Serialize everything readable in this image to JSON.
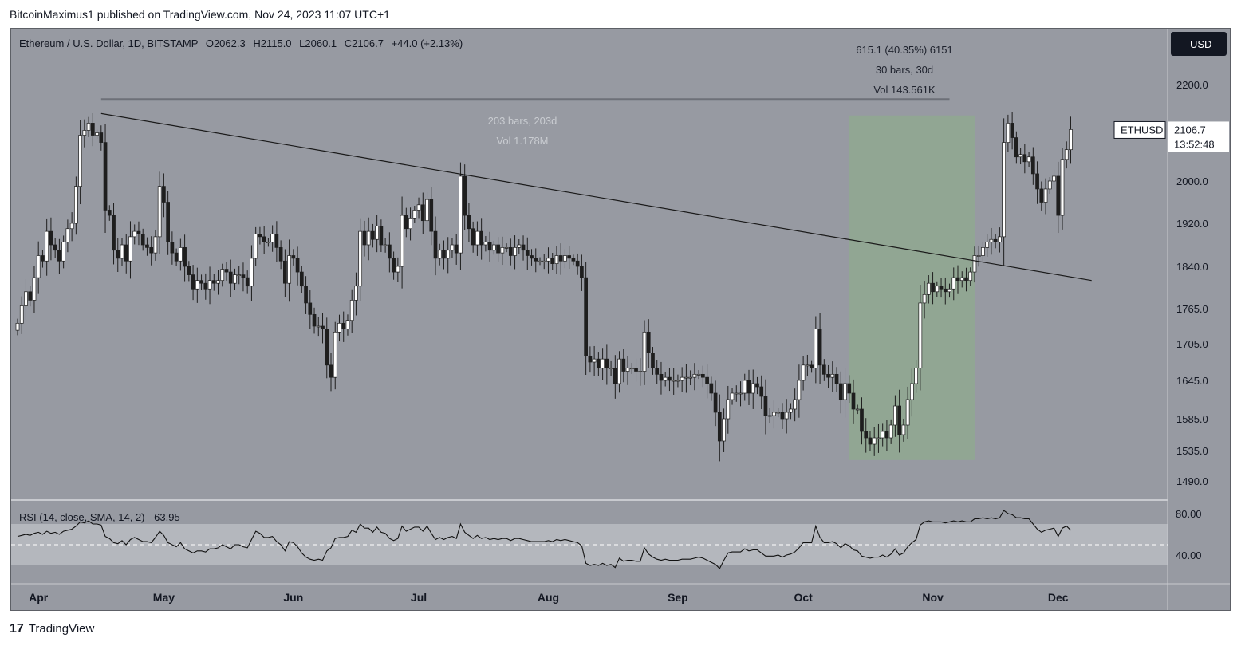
{
  "header": {
    "publisher": "BitcoinMaximus1 published on TradingView.com, Nov 24, 2023 11:07 UTC+1"
  },
  "legend": {
    "symbol": "Ethereum / U.S. Dollar, 1D, BITSTAMP",
    "open_label": "O",
    "open": "2062.3",
    "high_label": "H",
    "high": "2115.0",
    "low_label": "L",
    "low": "2060.1",
    "close_label": "C",
    "close": "2106.7",
    "change": "+44.0 (+2.13%)"
  },
  "currency_button": "USD",
  "price_tag": {
    "symbol": "ETHUSD",
    "price": "2106.7",
    "countdown": "13:52:48"
  },
  "measure_long": {
    "bars": "203 bars, 203d",
    "vol": "Vol 1.178M"
  },
  "measure_range": {
    "change": "615.1 (40.35%) 6151",
    "bars": "30 bars, 30d",
    "vol": "Vol 143.561K"
  },
  "rsi": {
    "label": "RSI (14, close, SMA, 14, 2)",
    "value": "63.95",
    "ticks": [
      "80.00",
      "40.00"
    ]
  },
  "footer": {
    "logo_mark": "17",
    "brand": "TradingView"
  },
  "colors": {
    "background": "#979aa2",
    "bull": "#ffffff",
    "bear": "#1e1e1e",
    "range_fill": "#8fa891",
    "trendline": "#1a1a1a"
  },
  "chart_data": {
    "type": "candlestick",
    "title": "Ethereum / U.S. Dollar, 1D, BITSTAMP",
    "y_ticks": [
      "2200.0",
      "2000.0",
      "1920.0",
      "1840.0",
      "1765.0",
      "1705.0",
      "1645.0",
      "1585.0",
      "1535.0",
      "1490.0"
    ],
    "x_ticks": [
      "Apr",
      "May",
      "Jun",
      "Jul",
      "Aug",
      "Sep",
      "Oct",
      "Nov",
      "Dec"
    ],
    "x_start": "2023-03-27",
    "closes": [
      1740,
      1770,
      1795,
      1780,
      1820,
      1860,
      1850,
      1905,
      1880,
      1870,
      1850,
      1885,
      1910,
      1920,
      1990,
      2095,
      2105,
      2120,
      2095,
      2100,
      2080,
      1945,
      1935,
      1870,
      1855,
      1880,
      1850,
      1895,
      1905,
      1900,
      1880,
      1875,
      1865,
      1895,
      1990,
      1960,
      1885,
      1865,
      1850,
      1875,
      1840,
      1825,
      1800,
      1815,
      1810,
      1800,
      1815,
      1810,
      1815,
      1835,
      1830,
      1810,
      1825,
      1825,
      1820,
      1805,
      1855,
      1900,
      1895,
      1885,
      1885,
      1900,
      1875,
      1850,
      1810,
      1860,
      1855,
      1830,
      1805,
      1775,
      1755,
      1735,
      1735,
      1730,
      1670,
      1650,
      1725,
      1740,
      1730,
      1745,
      1780,
      1805,
      1905,
      1880,
      1905,
      1890,
      1915,
      1880,
      1880,
      1855,
      1830,
      1840,
      1935,
      1910,
      1930,
      1945,
      1955,
      1925,
      1965,
      1905,
      1855,
      1870,
      1855,
      1870,
      1880,
      1865,
      2010,
      1935,
      1910,
      1880,
      1905,
      1880,
      1885,
      1870,
      1880,
      1865,
      1875,
      1875,
      1860,
      1875,
      1880,
      1870,
      1860,
      1855,
      1850,
      1850,
      1850,
      1855,
      1845,
      1860,
      1850,
      1860,
      1855,
      1850,
      1840,
      1820,
      1685,
      1675,
      1680,
      1665,
      1680,
      1665,
      1665,
      1640,
      1680,
      1660,
      1665,
      1665,
      1660,
      1660,
      1725,
      1690,
      1665,
      1655,
      1645,
      1650,
      1645,
      1645,
      1645,
      1650,
      1650,
      1650,
      1655,
      1655,
      1650,
      1640,
      1625,
      1595,
      1550,
      1585,
      1615,
      1625,
      1625,
      1625,
      1645,
      1625,
      1640,
      1635,
      1620,
      1590,
      1590,
      1595,
      1595,
      1585,
      1595,
      1600,
      1615,
      1645,
      1670,
      1670,
      1665,
      1730,
      1670,
      1655,
      1650,
      1655,
      1640,
      1615,
      1640,
      1625,
      1600,
      1600,
      1565,
      1555,
      1545,
      1555,
      1555,
      1565,
      1555,
      1575,
      1605,
      1560,
      1575,
      1615,
      1640,
      1665,
      1775,
      1790,
      1810,
      1795,
      1805,
      1800,
      1795,
      1800,
      1820,
      1815,
      1820,
      1815,
      1830,
      1860,
      1860,
      1875,
      1885,
      1890,
      1885,
      1895,
      2080,
      2120,
      2090,
      2050,
      2055,
      2040,
      2050,
      2015,
      1985,
      1960,
      1985,
      2000,
      2010,
      1935,
      2045,
      2065,
      2106.7
    ],
    "trendline": [
      {
        "date": "2023-04-16",
        "price": 2140
      },
      {
        "date": "2023-12-09",
        "price": 1815
      }
    ],
    "range_measure": {
      "from": "2023-10-12",
      "to": "2023-11-11",
      "low": 1521,
      "high": 2136,
      "change": 615.1,
      "pct": 40.35
    },
    "long_measure": {
      "from": "2023-04-16",
      "to": "2023-11-05",
      "price": 2169
    },
    "rsi": {
      "ylim": [
        25,
        90
      ],
      "upper_band": 70,
      "lower_band": 30,
      "mid": 50,
      "values": [
        58,
        59,
        60,
        59,
        61,
        62,
        60,
        63,
        61,
        62,
        60,
        63,
        64,
        65,
        68,
        72,
        71,
        73,
        70,
        70,
        69,
        58,
        56,
        52,
        51,
        54,
        50,
        55,
        57,
        55,
        53,
        53,
        52,
        57,
        63,
        59,
        52,
        50,
        48,
        52,
        46,
        44,
        42,
        44,
        44,
        43,
        46,
        46,
        47,
        50,
        48,
        46,
        50,
        50,
        48,
        47,
        55,
        63,
        61,
        57,
        57,
        58,
        53,
        50,
        44,
        53,
        52,
        48,
        42,
        38,
        36,
        35,
        36,
        35,
        44,
        47,
        56,
        57,
        57,
        58,
        64,
        62,
        70,
        66,
        66,
        62,
        67,
        62,
        61,
        56,
        54,
        56,
        68,
        63,
        65,
        67,
        67,
        63,
        68,
        61,
        55,
        57,
        55,
        57,
        58,
        56,
        70,
        62,
        59,
        56,
        59,
        56,
        57,
        55,
        56,
        55,
        56,
        56,
        54,
        56,
        56,
        55,
        54,
        53,
        53,
        53,
        53,
        54,
        53,
        55,
        54,
        55,
        54,
        53,
        52,
        49,
        32,
        30,
        31,
        30,
        32,
        30,
        31,
        28,
        37,
        34,
        35,
        35,
        34,
        34,
        47,
        41,
        38,
        36,
        35,
        36,
        35,
        35,
        35,
        36,
        36,
        36,
        37,
        38,
        37,
        35,
        33,
        31,
        27,
        35,
        42,
        43,
        43,
        43,
        46,
        44,
        45,
        45,
        42,
        39,
        39,
        39,
        40,
        38,
        40,
        41,
        43,
        47,
        52,
        52,
        52,
        68,
        57,
        52,
        52,
        53,
        51,
        47,
        51,
        49,
        45,
        44,
        39,
        38,
        37,
        38,
        38,
        40,
        38,
        41,
        46,
        40,
        42,
        48,
        52,
        55,
        69,
        72,
        73,
        72,
        72,
        72,
        71,
        72,
        73,
        72,
        73,
        72,
        72,
        75,
        75,
        76,
        75,
        76,
        75,
        76,
        83,
        80,
        79,
        76,
        76,
        75,
        75,
        70,
        65,
        62,
        64,
        65,
        66,
        58,
        66,
        68,
        64
      ]
    }
  }
}
